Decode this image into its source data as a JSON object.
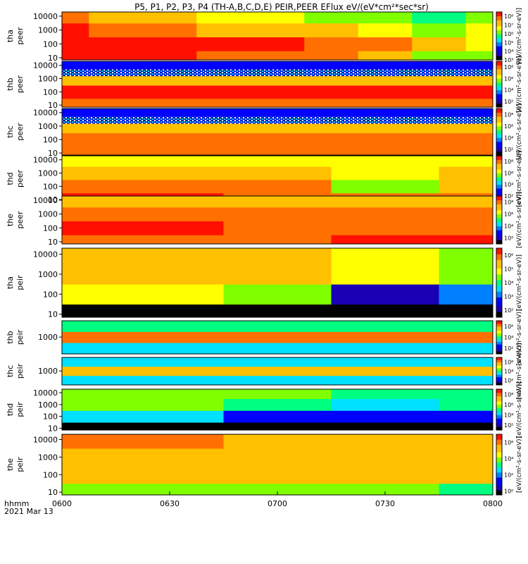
{
  "chart_data": {
    "type": "heatmap",
    "title": "P5, P1, P2, P3, P4 (TH-A,B,C,D,E) PEIR,PEER EFlux eV/(eV*cm²*sec*sr)",
    "x_ticks": [
      "0600",
      "0630",
      "0700",
      "0730",
      "0800"
    ],
    "x_tick_values": [
      0,
      30,
      60,
      90,
      120
    ],
    "xlim": [
      0,
      120
    ],
    "x_axis_label": "hhmm",
    "date_label": "2021 Mar 13",
    "colorbar_unit": "[eV/(cm²-s-sr-eV)]",
    "colormap": [
      "#000000",
      "#1a00b4",
      "#0000ff",
      "#0080ff",
      "#00e0ff",
      "#00ff80",
      "#80ff00",
      "#ffff00",
      "#ffc000",
      "#ff7000",
      "#ff1000",
      "#cc0000"
    ],
    "panels": [
      {
        "probe": "tha",
        "species": "peer",
        "ylabel": [
          "tha",
          "peer"
        ],
        "yticks": [
          "10",
          "100",
          "1000",
          "10000"
        ],
        "ytick_values": [
          10,
          100,
          1000,
          10000
        ],
        "ylim": [
          7,
          20000
        ],
        "cb_ticks": [
          "10⁸",
          "10⁷",
          "10⁶",
          "10⁵",
          "10⁴",
          "10³"
        ],
        "cb_exps": [
          8,
          7,
          6,
          5,
          4,
          3
        ],
        "cb_range": [
          3,
          8.5
        ],
        "log_flux_time": [
          0,
          15,
          30,
          45,
          60,
          75,
          90,
          105,
          120
        ],
        "log_flux_energy": [
          10,
          100,
          1000,
          10000
        ],
        "log_flux": [
          [
            8.0,
            8.0,
            8.0,
            7.8,
            7.8,
            7.6,
            7.2,
            6.2,
            6.0
          ],
          [
            8.2,
            8.2,
            8.0,
            8.0,
            8.0,
            7.8,
            7.5,
            7.0,
            6.8
          ],
          [
            8.0,
            7.8,
            7.6,
            7.4,
            7.2,
            7.0,
            6.6,
            6.4,
            6.6
          ],
          [
            7.6,
            7.4,
            7.0,
            6.8,
            6.6,
            6.4,
            6.0,
            5.8,
            6.0
          ]
        ]
      },
      {
        "probe": "thb",
        "species": "peer",
        "ylabel": [
          "thb",
          "peer"
        ],
        "yticks": [
          "10",
          "100",
          "1000",
          "10000"
        ],
        "ytick_values": [
          10,
          100,
          1000,
          10000
        ],
        "ylim": [
          7,
          20000
        ],
        "cb_ticks": [
          "10⁸",
          "10⁶",
          "10⁴",
          "10²"
        ],
        "cb_exps": [
          8,
          6,
          4,
          2
        ],
        "cb_range": [
          1,
          9
        ],
        "log_flux_time": [
          0,
          60,
          120
        ],
        "log_flux_energy": [
          10,
          100,
          1000,
          10000
        ],
        "log_flux": [
          [
            8.0,
            8.0,
            8.0
          ],
          [
            8.4,
            8.4,
            8.4
          ],
          [
            7.2,
            7.2,
            7.2
          ],
          [
            3.0,
            3.0,
            3.0
          ]
        ]
      },
      {
        "probe": "thc",
        "species": "peer",
        "ylabel": [
          "thc",
          "peer"
        ],
        "yticks": [
          "10",
          "100",
          "1000",
          "10000"
        ],
        "ytick_values": [
          10,
          100,
          1000,
          10000
        ],
        "ylim": [
          7,
          20000
        ],
        "cb_ticks": [
          "10⁸",
          "10⁶",
          "10⁴",
          "10²"
        ],
        "cb_exps": [
          8,
          6,
          4,
          2
        ],
        "cb_range": [
          1,
          9
        ],
        "log_flux_time": [
          0,
          60,
          120
        ],
        "log_flux_energy": [
          10,
          100,
          1000,
          10000
        ],
        "log_flux": [
          [
            8.2,
            8.2,
            8.2
          ],
          [
            8.0,
            8.0,
            8.0
          ],
          [
            7.0,
            7.0,
            7.0
          ],
          [
            3.0,
            3.0,
            3.0
          ]
        ]
      },
      {
        "probe": "thd",
        "species": "peer",
        "ylabel": [
          "thd",
          "peer"
        ],
        "yticks": [
          "10",
          "100",
          "1000",
          "10000"
        ],
        "ytick_values": [
          10,
          100,
          1000,
          10000
        ],
        "ylim": [
          7,
          20000
        ],
        "cb_ticks": [
          "10⁸",
          "10⁶",
          "10⁴",
          "10²"
        ],
        "cb_exps": [
          8,
          6,
          4,
          2
        ],
        "cb_range": [
          1,
          9
        ],
        "log_flux_time": [
          0,
          30,
          60,
          90,
          120
        ],
        "log_flux_energy": [
          10,
          100,
          1000,
          10000
        ],
        "log_flux": [
          [
            8.4,
            8.4,
            8.2,
            8.0,
            8.0
          ],
          [
            8.0,
            7.8,
            7.6,
            6.0,
            7.4
          ],
          [
            7.4,
            7.2,
            7.0,
            6.6,
            7.0
          ],
          [
            6.8,
            6.8,
            6.6,
            6.4,
            6.6
          ]
        ]
      },
      {
        "probe": "the",
        "species": "peer",
        "ylabel": [
          "the",
          "peer"
        ],
        "yticks": [
          "10",
          "100",
          "1000",
          "10000"
        ],
        "ytick_values": [
          10,
          100,
          1000,
          10000
        ],
        "ylim": [
          7,
          20000
        ],
        "cb_ticks": [
          "10⁸",
          "10⁶",
          "10⁴",
          "10²"
        ],
        "cb_exps": [
          8,
          6,
          4,
          2
        ],
        "cb_range": [
          1,
          9
        ],
        "log_flux_time": [
          0,
          30,
          60,
          90,
          120
        ],
        "log_flux_energy": [
          10,
          100,
          1000,
          10000
        ],
        "log_flux": [
          [
            8.2,
            8.2,
            8.2,
            8.4,
            8.4
          ],
          [
            8.4,
            8.4,
            8.2,
            8.2,
            8.2
          ],
          [
            8.0,
            8.0,
            7.8,
            7.6,
            7.6
          ],
          [
            7.2,
            7.2,
            7.2,
            7.0,
            7.0
          ]
        ]
      },
      {
        "probe": "tha",
        "species": "peir",
        "ylabel": [
          "tha",
          "peir"
        ],
        "yticks": [
          "10",
          "100",
          "1000",
          "10000"
        ],
        "ytick_values": [
          10,
          100,
          1000,
          10000
        ],
        "ylim": [
          7,
          20000
        ],
        "cb_ticks": [
          "10⁶",
          "10⁵",
          "10⁴",
          "10³",
          "10²"
        ],
        "cb_exps": [
          6,
          5,
          4,
          3,
          2
        ],
        "cb_range": [
          1.5,
          6.5
        ],
        "log_flux_time": [
          0,
          30,
          60,
          90,
          120
        ],
        "log_flux_energy": [
          10,
          100,
          1000,
          10000
        ],
        "log_flux": [
          [
            0,
            0,
            0,
            0,
            0
          ],
          [
            5.0,
            5.0,
            4.6,
            2.0,
            3.0
          ],
          [
            5.4,
            5.4,
            5.4,
            5.0,
            4.6
          ],
          [
            5.2,
            5.2,
            5.2,
            4.8,
            4.4
          ]
        ]
      },
      {
        "probe": "thb",
        "species": "peir",
        "ylabel": [
          "thb",
          "peir"
        ],
        "yticks": [
          "1000"
        ],
        "ytick_values": [
          1000
        ],
        "ylim": [
          30,
          30000
        ],
        "cb_ticks": [
          "10⁶",
          "10⁴",
          "10²"
        ],
        "cb_exps": [
          6,
          4,
          2
        ],
        "cb_range": [
          1,
          7
        ],
        "log_flux_time": [
          0,
          60,
          120
        ],
        "log_flux_energy": [
          100,
          1000,
          10000
        ],
        "log_flux": [
          [
            3.5,
            3.5,
            3.5
          ],
          [
            6.2,
            6.2,
            6.2
          ],
          [
            4.0,
            4.0,
            4.0
          ]
        ]
      },
      {
        "probe": "thc",
        "species": "peir",
        "ylabel": [
          "thc",
          "peir"
        ],
        "yticks": [
          "1000"
        ],
        "ytick_values": [
          1000
        ],
        "ylim": [
          30,
          30000
        ],
        "cb_ticks": [
          "10⁶",
          "10⁴",
          "10²"
        ],
        "cb_exps": [
          6,
          4,
          2
        ],
        "cb_range": [
          1,
          7
        ],
        "log_flux_time": [
          0,
          60,
          120
        ],
        "log_flux_energy": [
          100,
          1000,
          10000
        ],
        "log_flux": [
          [
            3.5,
            3.5,
            3.5
          ],
          [
            5.6,
            5.6,
            5.6
          ],
          [
            3.6,
            3.6,
            3.6
          ]
        ]
      },
      {
        "probe": "thd",
        "species": "peir",
        "ylabel": [
          "thd",
          "peir"
        ],
        "yticks": [
          "10",
          "100",
          "1000",
          "10000"
        ],
        "ytick_values": [
          10,
          100,
          1000,
          10000
        ],
        "ylim": [
          7,
          20000
        ],
        "cb_ticks": [
          "10⁸",
          "10⁶",
          "10⁴",
          "10²"
        ],
        "cb_exps": [
          8,
          6,
          4,
          2
        ],
        "cb_range": [
          1,
          9
        ],
        "log_flux_time": [
          0,
          30,
          60,
          90,
          120
        ],
        "log_flux_energy": [
          10,
          100,
          1000,
          10000
        ],
        "log_flux": [
          [
            0,
            0,
            0,
            0,
            0
          ],
          [
            4.6,
            4.4,
            3.0,
            2.5,
            3.0
          ],
          [
            5.6,
            5.4,
            5.0,
            4.6,
            4.8
          ],
          [
            5.8,
            5.6,
            5.4,
            5.0,
            5.2
          ]
        ]
      },
      {
        "probe": "the",
        "species": "peir",
        "ylabel": [
          "the",
          "peir"
        ],
        "yticks": [
          "10",
          "100",
          "1000",
          "10000"
        ],
        "ytick_values": [
          10,
          100,
          1000,
          10000
        ],
        "ylim": [
          7,
          20000
        ],
        "cb_ticks": [
          "10⁶",
          "10⁴",
          "10²",
          "10⁰"
        ],
        "cb_exps": [
          6,
          4,
          2,
          0
        ],
        "cb_range": [
          -0.5,
          7
        ],
        "log_flux_time": [
          0,
          30,
          60,
          90,
          120
        ],
        "log_flux_energy": [
          10,
          100,
          1000,
          10000
        ],
        "log_flux": [
          [
            4.0,
            4.0,
            3.8,
            3.6,
            3.0
          ],
          [
            5.2,
            5.2,
            5.0,
            5.0,
            5.0
          ],
          [
            5.6,
            5.6,
            5.4,
            5.2,
            5.4
          ],
          [
            5.8,
            5.8,
            5.6,
            5.2,
            5.4
          ]
        ]
      }
    ]
  }
}
